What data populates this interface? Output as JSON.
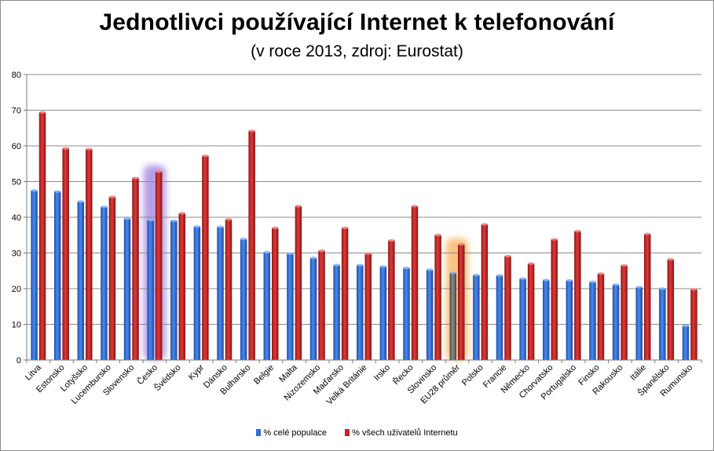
{
  "colors": {
    "series1": "#2f6fd6",
    "series2": "#c92424",
    "highlight_series1": "#6b6b6b",
    "glow_purple": "#a07fe0",
    "glow_orange": "#f7b15a",
    "grid": "#8c8c8c"
  },
  "chart_data": {
    "type": "bar",
    "title": "Jednotlivci používající Internet k telefonování",
    "subtitle": "(v roce 2013, zdroj: Eurostat)",
    "xlabel": "",
    "ylabel": "",
    "ylim": [
      0,
      80
    ],
    "yticks": [
      0,
      10,
      20,
      30,
      40,
      50,
      60,
      70,
      80
    ],
    "grid": true,
    "legend_position": "bottom",
    "categories": [
      "Litva",
      "Estonsko",
      "Lotyšsko",
      "Lucembursko",
      "Slovensko",
      "Česko",
      "Švédsko",
      "Kypr",
      "Dánsko",
      "Bulharsko",
      "Belgie",
      "Malta",
      "Nizozemsko",
      "Maďarsko",
      "Velká Británie",
      "Irsko",
      "Řecko",
      "Slovinsko",
      "EU28 průměr",
      "Polsko",
      "Francie",
      "Německo",
      "Chorvatsko",
      "Portugalsko",
      "Finsko",
      "Rakousko",
      "Itálie",
      "Španělsko",
      "Rumunsko"
    ],
    "series": [
      {
        "name": "% celé populace",
        "values": [
          47.5,
          47.2,
          44.4,
          42.9,
          39.6,
          39.2,
          39.0,
          37.4,
          37.3,
          33.9,
          30.2,
          29.8,
          28.6,
          26.6,
          26.6,
          26.2,
          25.8,
          25.3,
          24.4,
          23.8,
          23.7,
          22.8,
          22.4,
          22.3,
          21.9,
          21.1,
          20.4,
          20.0,
          9.6
        ]
      },
      {
        "name": "% všech uživatelů Internetu",
        "values": [
          69.4,
          59.3,
          59.1,
          45.7,
          51.0,
          52.8,
          41.1,
          57.2,
          39.4,
          64.2,
          37.0,
          43.1,
          30.6,
          37.0,
          29.8,
          33.5,
          43.1,
          35.0,
          32.4,
          38.0,
          29.1,
          27.0,
          33.8,
          36.1,
          24.2,
          26.5,
          35.3,
          28.2,
          19.8
        ]
      }
    ],
    "highlights": [
      {
        "category": "Česko",
        "style": "purple-glow"
      },
      {
        "category": "EU28 průměr",
        "style": "orange-glow"
      }
    ]
  }
}
